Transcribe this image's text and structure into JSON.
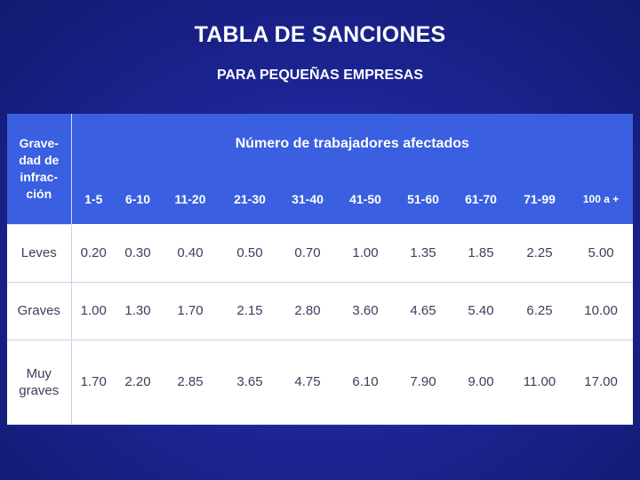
{
  "title": "TABLA DE SANCIONES",
  "subtitle": "PARA PEQUEÑAS EMPRESAS",
  "table": {
    "gravity_header": [
      "Grave-",
      "dad de",
      "infrac-",
      "ción"
    ],
    "workers_header": "Número de trabajadores afectados",
    "ranges": [
      "1-5",
      "6-10",
      "11-20",
      "21-30",
      "31-40",
      "41-50",
      "51-60",
      "61-70",
      "71-99",
      "100 a +"
    ],
    "rows": [
      {
        "label": [
          "Leves"
        ],
        "values": [
          "0.20",
          "0.30",
          "0.40",
          "0.50",
          "0.70",
          "1.00",
          "1.35",
          "1.85",
          "2.25",
          "5.00"
        ]
      },
      {
        "label": [
          "Graves"
        ],
        "values": [
          "1.00",
          "1.30",
          "1.70",
          "2.15",
          "2.80",
          "3.60",
          "4.65",
          "5.40",
          "6.25",
          "10.00"
        ]
      },
      {
        "label": [
          "Muy",
          "graves"
        ],
        "values": [
          "1.70",
          "2.20",
          "2.85",
          "3.65",
          "4.75",
          "6.10",
          "7.90",
          "9.00",
          "11.00",
          "17.00"
        ]
      }
    ]
  }
}
